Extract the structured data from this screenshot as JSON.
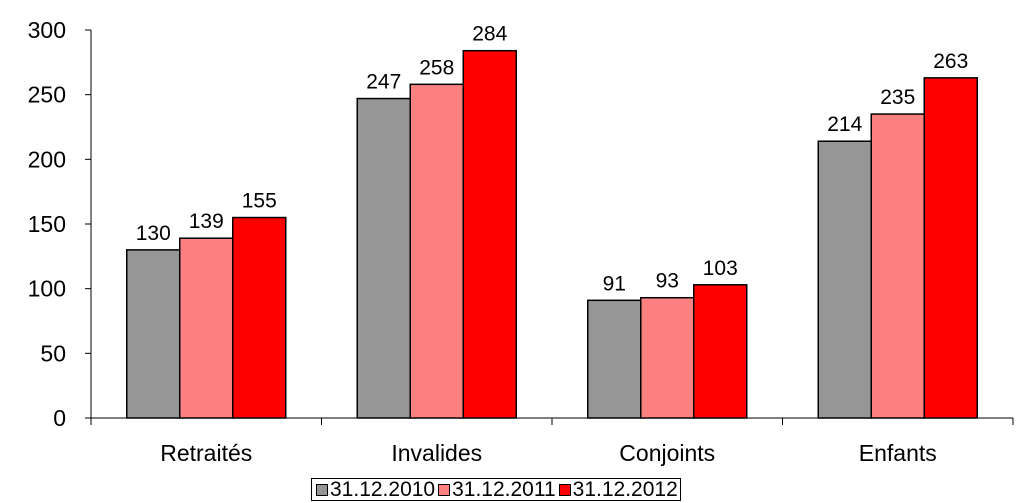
{
  "chart_data": {
    "type": "bar",
    "categories": [
      "Retraités",
      "Invalides",
      "Conjoints",
      "Enfants"
    ],
    "series": [
      {
        "name": "31.12.2010",
        "color": "#969696",
        "values": [
          130,
          247,
          91,
          214
        ]
      },
      {
        "name": "31.12.2011",
        "color": "#ff8080",
        "values": [
          139,
          258,
          93,
          235
        ]
      },
      {
        "name": "31.12.2012",
        "color": "#ff0000",
        "values": [
          155,
          284,
          103,
          263
        ]
      }
    ],
    "ylim": [
      0,
      300
    ],
    "yticks": [
      0,
      50,
      100,
      150,
      200,
      250,
      300
    ],
    "grid": false,
    "legend_position": "bottom"
  }
}
